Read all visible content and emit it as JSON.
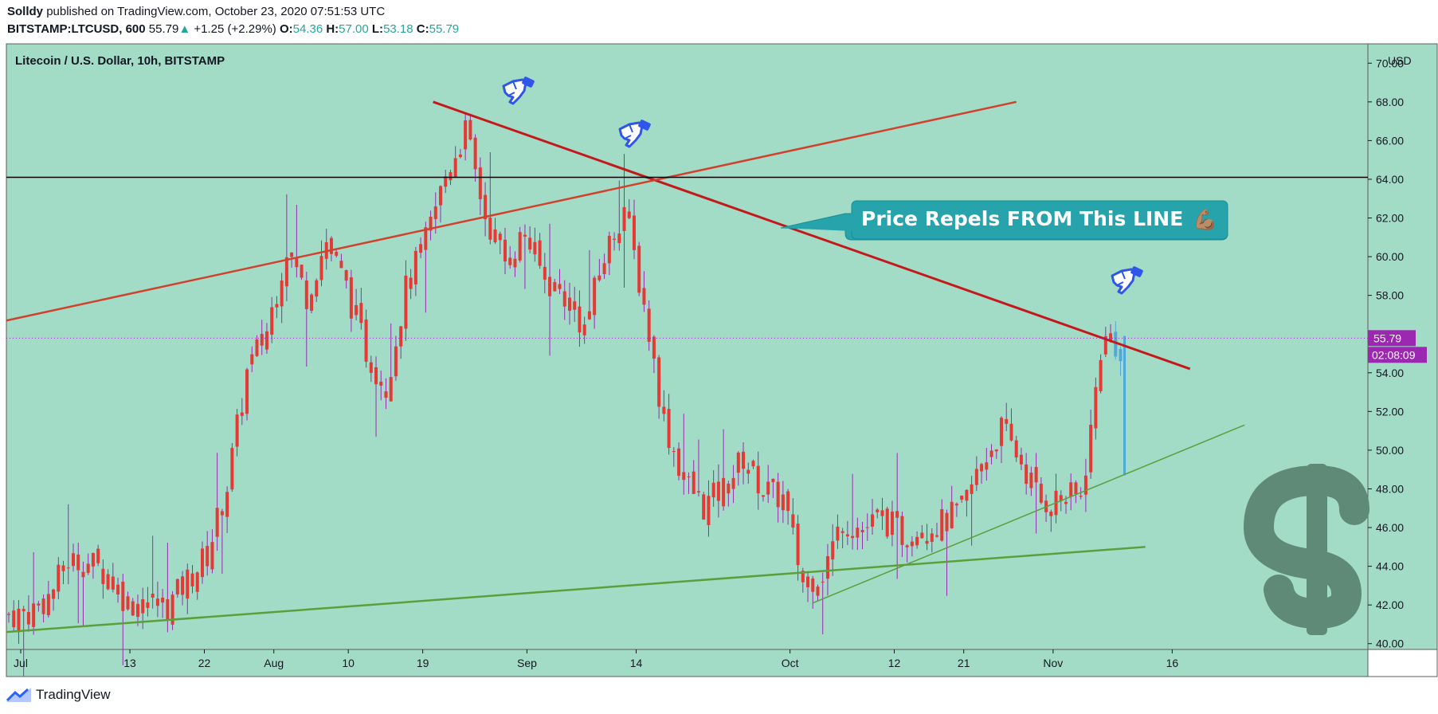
{
  "header": {
    "author": "Solldy",
    "published_text": "published on TradingView.com, October 23, 2020 07:51:53 UTC",
    "symbol_interval": "BITSTAMP:LTCUSD, 600",
    "last_price": "55.79",
    "change_arrow": "▲",
    "change": "+1.25 (+2.29%)",
    "o_label": "O:",
    "o": "54.36",
    "h_label": "H:",
    "h": "57.00",
    "l_label": "L:",
    "l": "53.18",
    "c_label": "C:",
    "c": "55.79"
  },
  "footer": {
    "brand": "TradingView"
  },
  "annotation": {
    "text": "Price Repels FROM This LINE",
    "emoji": "💪🏽"
  },
  "colors": {
    "background": "#a3dcc6",
    "candle": "#e53935",
    "wick": "#9c27b0",
    "live_candle": "#4fa8d8",
    "resistance": "#c3191b",
    "channel": "#d0422e",
    "horizontal": "#000000",
    "support": "#5b9f3b",
    "note_box": "#26a3ab",
    "price_tag": "#9c27b0",
    "dollar_sign": "#5f8a77",
    "hand_icon": "#2f56e8"
  },
  "chart_data": {
    "type": "candlestick",
    "title": "Litecoin / U.S. Dollar, 10h, BITSTAMP",
    "currency": "USD",
    "ylim": [
      39.7,
      71
    ],
    "y_ticks": [
      "40.00",
      "42.00",
      "44.00",
      "46.00",
      "48.00",
      "50.00",
      "52.00",
      "54.00",
      "56.00",
      "58.00",
      "60.00",
      "62.00",
      "64.00",
      "66.00",
      "68.00",
      "70.00"
    ],
    "x_ticks": [
      "Jul",
      "13",
      "22",
      "Aug",
      "10",
      "19",
      "Sep",
      "14",
      "Oct",
      "12",
      "21",
      "Nov",
      "16"
    ],
    "last_price_label": "55.79",
    "countdown_label": "02:08:09",
    "candles_close_path": [
      [
        0,
        41.5
      ],
      [
        4,
        41.6
      ],
      [
        8,
        42.4
      ],
      [
        12,
        44.3
      ],
      [
        16,
        44.2
      ],
      [
        20,
        43.6
      ],
      [
        24,
        42.1
      ],
      [
        28,
        42.2
      ],
      [
        32,
        41.9
      ],
      [
        36,
        43.3
      ],
      [
        40,
        44.6
      ],
      [
        44,
        48.2
      ],
      [
        48,
        54.0
      ],
      [
        52,
        56.2
      ],
      [
        56,
        60.5
      ],
      [
        60,
        58.0
      ],
      [
        64,
        60.8
      ],
      [
        68,
        58.4
      ],
      [
        72,
        55.1
      ],
      [
        76,
        53.3
      ],
      [
        80,
        58.3
      ],
      [
        84,
        60.8
      ],
      [
        88,
        64.2
      ],
      [
        92,
        66.5
      ],
      [
        96,
        62.1
      ],
      [
        100,
        59.8
      ],
      [
        104,
        61.2
      ],
      [
        108,
        58.8
      ],
      [
        112,
        58.0
      ],
      [
        116,
        56.3
      ],
      [
        120,
        60.0
      ],
      [
        124,
        62.6
      ],
      [
        128,
        57.5
      ],
      [
        132,
        51.5
      ],
      [
        136,
        48.5
      ],
      [
        140,
        47.1
      ],
      [
        144,
        48.0
      ],
      [
        148,
        49.6
      ],
      [
        152,
        48.0
      ],
      [
        156,
        47.5
      ],
      [
        160,
        43.2
      ],
      [
        164,
        43.7
      ],
      [
        168,
        46.4
      ],
      [
        172,
        45.9
      ],
      [
        176,
        46.5
      ],
      [
        180,
        45.6
      ],
      [
        184,
        46.0
      ],
      [
        188,
        46.2
      ],
      [
        192,
        46.9
      ],
      [
        196,
        49.3
      ],
      [
        200,
        51.1
      ],
      [
        204,
        49.4
      ],
      [
        208,
        47.3
      ],
      [
        212,
        47.5
      ],
      [
        216,
        47.6
      ],
      [
        218,
        51.0
      ],
      [
        220,
        55.2
      ],
      [
        222,
        55.9
      ],
      [
        224,
        55.0
      ]
    ],
    "lines": [
      {
        "name": "",
        "from": [
          85.5,
          68.0
        ],
        "to": [
          238,
          54.2
        ]
      },
      {
        "name": "",
        "from": [
          -1,
          56.7
        ],
        "to": [
          203,
          68.0
        ]
      },
      {
        "name": "",
        "from": [
          -1,
          64.1
        ],
        "to": [
          275,
          64.1
        ]
      },
      {
        "name": "",
        "from": [
          -1,
          40.6
        ],
        "to": [
          229,
          45.0
        ]
      },
      {
        "name": "",
        "from": [
          162,
          42.1
        ],
        "to": [
          249,
          51.3
        ]
      }
    ]
  }
}
